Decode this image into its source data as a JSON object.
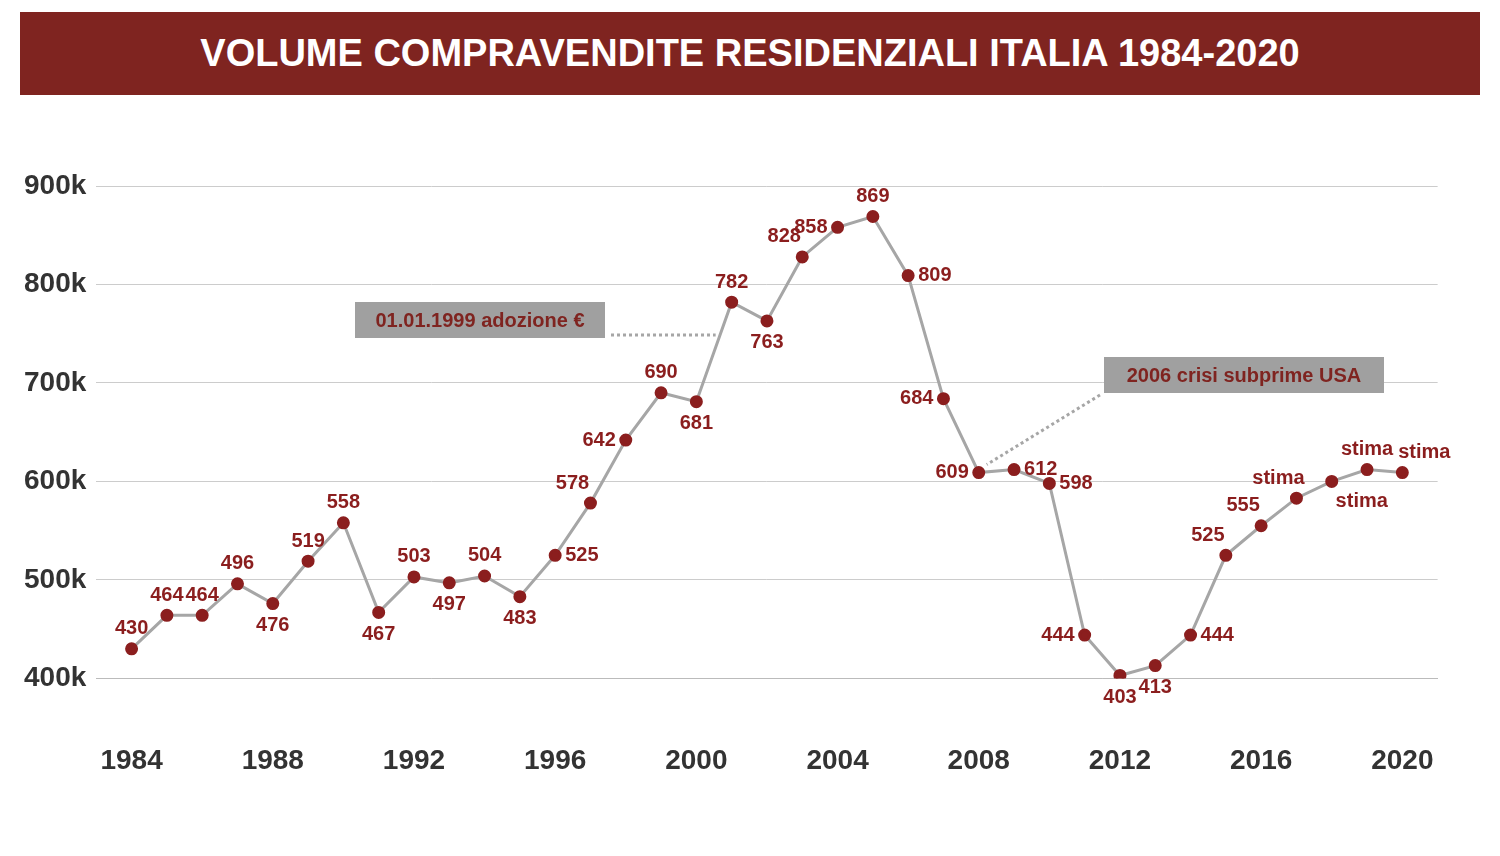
{
  "chart_data": {
    "type": "line",
    "title": "VOLUME COMPRAVENDITE RESIDENZIALI ITALIA 1984-2020",
    "x": [
      1984,
      1985,
      1986,
      1987,
      1988,
      1989,
      1990,
      1991,
      1992,
      1993,
      1994,
      1995,
      1996,
      1997,
      1998,
      1999,
      2000,
      2001,
      2002,
      2003,
      2004,
      2005,
      2006,
      2007,
      2008,
      2009,
      2010,
      2011,
      2012,
      2013,
      2014,
      2015,
      2016,
      2017,
      2018,
      2019,
      2020
    ],
    "values": [
      430,
      464,
      464,
      496,
      476,
      519,
      558,
      467,
      503,
      497,
      504,
      483,
      525,
      578,
      642,
      690,
      681,
      782,
      763,
      828,
      858,
      869,
      809,
      684,
      609,
      612,
      598,
      444,
      403,
      413,
      444,
      525,
      555,
      583,
      600,
      612,
      609
    ],
    "value_labels": [
      "430",
      "464",
      "464",
      "496",
      "476",
      "519",
      "558",
      "467",
      "503",
      "497",
      "504",
      "483",
      "525",
      "578",
      "642",
      "690",
      "681",
      "782",
      "763",
      "828",
      "858",
      "869",
      "809",
      "684",
      "609",
      "612",
      "598",
      "444",
      "403",
      "413",
      "444",
      "525",
      "555",
      "stima",
      "stima",
      "stima",
      "stima"
    ],
    "color": "#a6a6a6",
    "marker": "circle",
    "xlim": [
      1983,
      2021
    ],
    "xticks": [
      1984,
      1988,
      1992,
      1996,
      2000,
      2004,
      2008,
      2012,
      2016,
      2020
    ],
    "ylim": [
      400,
      900
    ],
    "yticks": [
      {
        "value": 400,
        "label": "400k"
      },
      {
        "value": 500,
        "label": "500k"
      },
      {
        "value": 600,
        "label": "600k"
      },
      {
        "value": 700,
        "label": "700k"
      },
      {
        "value": 800,
        "label": "800k"
      },
      {
        "value": 900,
        "label": "900k"
      }
    ],
    "grid": true,
    "data_labels": true,
    "annotations": [
      "01.01.1999 adozione €",
      "2006 crisi subprime USA"
    ]
  }
}
